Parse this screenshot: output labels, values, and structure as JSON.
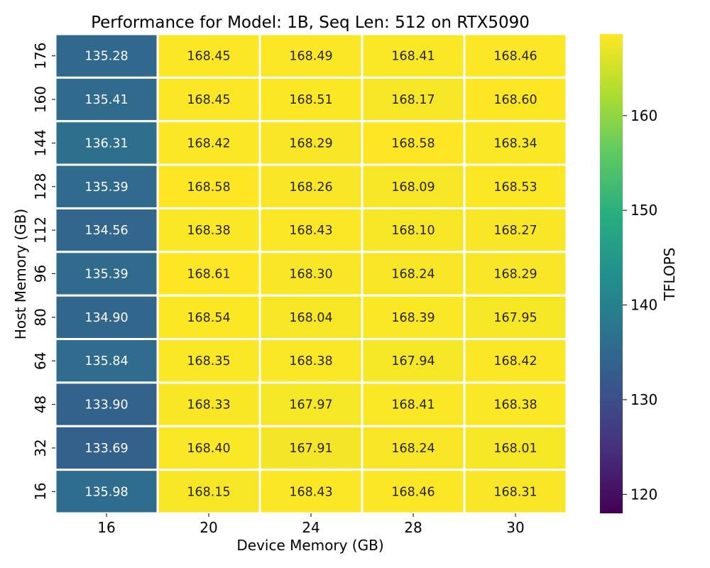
{
  "chart_data": {
    "type": "heatmap",
    "title": "Performance for Model: 1B, Seq Len: 512 on RTX5090",
    "xlabel": "Device Memory (GB)",
    "ylabel": "Host Memory (GB)",
    "x_categories": [
      "16",
      "20",
      "24",
      "28",
      "30"
    ],
    "y_categories": [
      "176",
      "160",
      "144",
      "128",
      "112",
      "96",
      "80",
      "64",
      "48",
      "32",
      "16"
    ],
    "values": [
      [
        135.28,
        168.45,
        168.49,
        168.41,
        168.46
      ],
      [
        135.41,
        168.45,
        168.51,
        168.17,
        168.6
      ],
      [
        136.31,
        168.42,
        168.29,
        168.58,
        168.34
      ],
      [
        135.39,
        168.58,
        168.26,
        168.09,
        168.53
      ],
      [
        134.56,
        168.38,
        168.43,
        168.1,
        168.27
      ],
      [
        135.39,
        168.61,
        168.3,
        168.24,
        168.29
      ],
      [
        134.9,
        168.54,
        168.04,
        168.39,
        167.95
      ],
      [
        135.84,
        168.35,
        168.38,
        167.94,
        168.42
      ],
      [
        133.9,
        168.33,
        167.97,
        168.41,
        168.38
      ],
      [
        133.69,
        168.4,
        167.91,
        168.24,
        168.01
      ],
      [
        135.98,
        168.15,
        168.43,
        168.46,
        168.31
      ]
    ],
    "value_format": "2 decimals",
    "colorbar": {
      "label": "TFLOPS",
      "colormap": "viridis",
      "vmin": 118.0,
      "vmax": 168.61,
      "ticks": [
        120,
        130,
        140,
        150,
        160
      ]
    },
    "grid": false,
    "cell_separator_color": "#ffffff"
  }
}
